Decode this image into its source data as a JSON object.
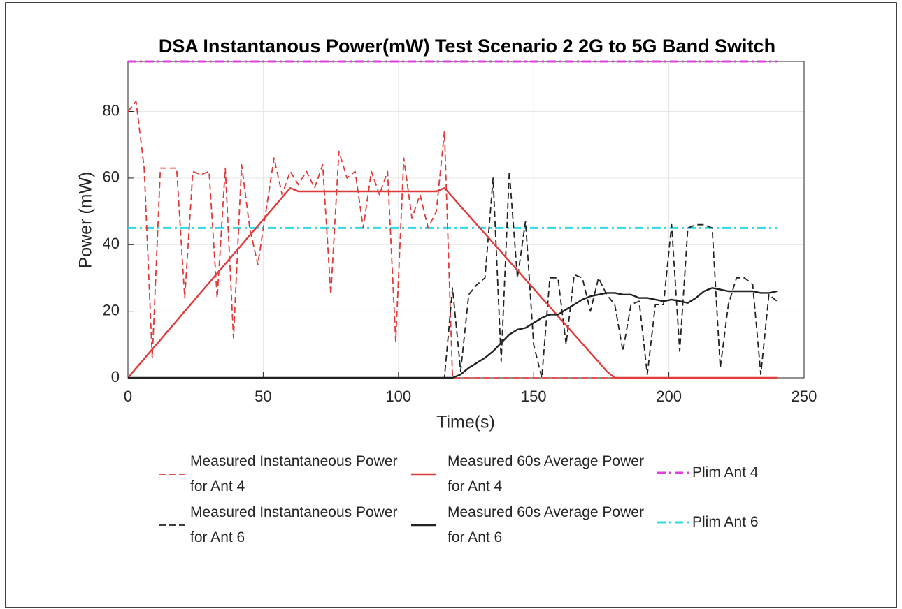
{
  "chart_data": {
    "type": "line",
    "title": "DSA Instantanous Power(mW) Test Scenario 2 2G to 5G Band Switch",
    "x_label": "Time(s)",
    "y_label": "Power (mW)",
    "x": [
      0,
      3,
      6,
      9,
      12,
      15,
      18,
      21,
      24,
      27,
      30,
      33,
      36,
      39,
      42,
      45,
      48,
      51,
      54,
      57,
      60,
      63,
      66,
      69,
      72,
      75,
      78,
      81,
      84,
      87,
      90,
      93,
      96,
      99,
      102,
      105,
      108,
      111,
      114,
      117,
      120,
      123,
      126,
      129,
      132,
      135,
      138,
      141,
      144,
      147,
      150,
      153,
      156,
      159,
      162,
      165,
      168,
      171,
      174,
      177,
      180,
      183,
      186,
      189,
      192,
      195,
      198,
      201,
      204,
      207,
      210,
      213,
      216,
      219,
      222,
      225,
      228,
      231,
      234,
      237,
      240
    ],
    "series": [
      {
        "name": "Measured Instantaneous Power for Ant 4",
        "color": "#e03a3a",
        "dash": true,
        "values": [
          80,
          83,
          63,
          6,
          63,
          63,
          63,
          24,
          62,
          61,
          62,
          24,
          63,
          12,
          64,
          45,
          34,
          50,
          66,
          55,
          62,
          58,
          62,
          57,
          64,
          25,
          68,
          60,
          62,
          45,
          62,
          55,
          62,
          11,
          66,
          48,
          55,
          45,
          50,
          74,
          0,
          0,
          0,
          0,
          0,
          0,
          0,
          0,
          0,
          0,
          0,
          0,
          0,
          0,
          0,
          0,
          0,
          0,
          0,
          0,
          0,
          0,
          0,
          0,
          0,
          0,
          0,
          0,
          0,
          0,
          0,
          0,
          0,
          0,
          0,
          0,
          0,
          0,
          0,
          0,
          0
        ]
      },
      {
        "name": "Measured Instantaneous Power for Ant 6",
        "color": "#222222",
        "dash": true,
        "values": [
          0,
          0,
          0,
          0,
          0,
          0,
          0,
          0,
          0,
          0,
          0,
          0,
          0,
          0,
          0,
          0,
          0,
          0,
          0,
          0,
          0,
          0,
          0,
          0,
          0,
          0,
          0,
          0,
          0,
          0,
          0,
          0,
          0,
          0,
          0,
          0,
          0,
          0,
          0,
          0,
          27,
          2,
          25,
          28,
          30,
          60,
          5,
          62,
          30,
          47,
          10,
          0,
          30,
          30,
          10,
          31,
          30,
          20,
          30,
          25,
          22,
          8,
          22,
          23,
          1,
          22,
          22,
          46,
          8,
          45,
          46,
          46,
          45,
          3,
          22,
          30,
          30,
          28,
          1,
          25,
          23
        ]
      },
      {
        "name": "Measured 60s Average Power for Ant 4",
        "color": "#e03a3a",
        "dash": false,
        "values": [
          0,
          2.9,
          5.7,
          8.6,
          11.4,
          14.3,
          17.1,
          20,
          22.8,
          25.7,
          28.5,
          31.4,
          34.2,
          37.1,
          39.9,
          42.8,
          45.6,
          48.5,
          51.3,
          54.2,
          57,
          56,
          56,
          56,
          56,
          56,
          56,
          56,
          56,
          56,
          56,
          56,
          56,
          56,
          56,
          56,
          56,
          56,
          56,
          57,
          54.3,
          51.5,
          48.8,
          46,
          43.3,
          40.5,
          37.8,
          35,
          32.3,
          29.5,
          26.8,
          24,
          21.3,
          18.5,
          15.8,
          13,
          10.3,
          7.5,
          4.8,
          2,
          0,
          0,
          0,
          0,
          0,
          0,
          0,
          0,
          0,
          0,
          0,
          0,
          0,
          0,
          0,
          0,
          0,
          0,
          0,
          0,
          0
        ]
      },
      {
        "name": "Measured 60s Average Power for Ant 6",
        "color": "#222222",
        "dash": false,
        "values": [
          0,
          0,
          0,
          0,
          0,
          0,
          0,
          0,
          0,
          0,
          0,
          0,
          0,
          0,
          0,
          0,
          0,
          0,
          0,
          0,
          0,
          0,
          0,
          0,
          0,
          0,
          0,
          0,
          0,
          0,
          0,
          0,
          0,
          0,
          0,
          0,
          0,
          0,
          0,
          0,
          0,
          1,
          3,
          4.5,
          6,
          8,
          10.5,
          13,
          14.5,
          15,
          16.5,
          18,
          19,
          19,
          20.5,
          22,
          23.5,
          24.5,
          25,
          25.5,
          25.5,
          25,
          25,
          24,
          24,
          23.5,
          23,
          23.5,
          23,
          22.5,
          24,
          26,
          27,
          26.5,
          26,
          26,
          26,
          26,
          25.5,
          25.5,
          26
        ]
      }
    ],
    "hlines": [
      {
        "name": "Plim Ant 4",
        "color": "#e040e0",
        "value": 95
      },
      {
        "name": "Plim Ant 6",
        "color": "#30d8e8",
        "value": 45
      }
    ],
    "xlim": [
      0,
      250
    ],
    "xticks": [
      0,
      50,
      100,
      150,
      200,
      250
    ],
    "ylim": [
      0,
      95
    ],
    "yticks": [
      0,
      20,
      40,
      60,
      80
    ],
    "grid": true
  }
}
